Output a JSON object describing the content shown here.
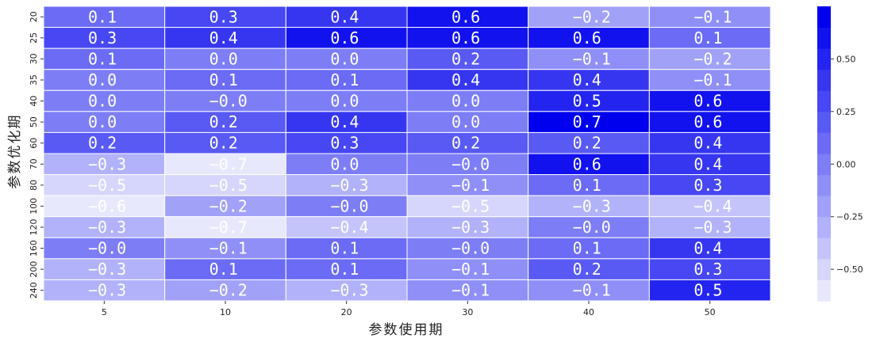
{
  "chart_data": {
    "type": "heatmap",
    "xlabel": "参数使用期",
    "ylabel": "参数优化期",
    "x_categories": [
      "5",
      "10",
      "20",
      "30",
      "40",
      "50"
    ],
    "y_categories": [
      "20",
      "25",
      "30",
      "35",
      "40",
      "50",
      "60",
      "70",
      "80",
      "100",
      "120",
      "160",
      "200",
      "240"
    ],
    "values": [
      [
        0.1,
        0.3,
        0.4,
        0.6,
        -0.2,
        -0.1
      ],
      [
        0.3,
        0.4,
        0.6,
        0.6,
        0.6,
        0.1
      ],
      [
        0.1,
        0.0,
        0.0,
        0.2,
        -0.1,
        -0.2
      ],
      [
        0.0,
        0.1,
        0.1,
        0.4,
        0.4,
        -0.1
      ],
      [
        0.0,
        -0.0,
        0.0,
        0.0,
        0.5,
        0.6
      ],
      [
        0.0,
        0.2,
        0.4,
        0.0,
        0.7,
        0.6
      ],
      [
        0.2,
        0.2,
        0.3,
        0.2,
        0.2,
        0.4
      ],
      [
        -0.3,
        -0.7,
        0.0,
        -0.0,
        0.6,
        0.4
      ],
      [
        -0.5,
        -0.5,
        -0.3,
        -0.1,
        0.1,
        0.3
      ],
      [
        -0.6,
        -0.2,
        -0.0,
        -0.5,
        -0.3,
        -0.4
      ],
      [
        -0.3,
        -0.7,
        -0.4,
        -0.3,
        -0.0,
        -0.3
      ],
      [
        -0.0,
        -0.1,
        0.1,
        -0.0,
        0.1,
        0.4
      ],
      [
        -0.3,
        0.1,
        0.1,
        -0.1,
        0.2,
        0.3
      ],
      [
        -0.3,
        -0.2,
        -0.3,
        -0.1,
        -0.1,
        0.5
      ]
    ],
    "cell_text": [
      [
        "0.1",
        "0.3",
        "0.4",
        "0.6",
        "−0.2",
        "−0.1"
      ],
      [
        "0.3",
        "0.4",
        "0.6",
        "0.6",
        "0.6",
        "0.1"
      ],
      [
        "0.1",
        "0.0",
        "0.0",
        "0.2",
        "−0.1",
        "−0.2"
      ],
      [
        "0.0",
        "0.1",
        "0.1",
        "0.4",
        "0.4",
        "−0.1"
      ],
      [
        "0.0",
        "−0.0",
        "0.0",
        "0.0",
        "0.5",
        "0.6"
      ],
      [
        "0.0",
        "0.2",
        "0.4",
        "0.0",
        "0.7",
        "0.6"
      ],
      [
        "0.2",
        "0.2",
        "0.3",
        "0.2",
        "0.2",
        "0.4"
      ],
      [
        "−0.3",
        "−0.7",
        "0.0",
        "−0.0",
        "0.6",
        "0.4"
      ],
      [
        "−0.5",
        "−0.5",
        "−0.3",
        "−0.1",
        "0.1",
        "0.3"
      ],
      [
        "−0.6",
        "−0.2",
        "−0.0",
        "−0.5",
        "−0.3",
        "−0.4"
      ],
      [
        "−0.3",
        "−0.7",
        "−0.4",
        "−0.3",
        "−0.0",
        "−0.3"
      ],
      [
        "−0.0",
        "−0.1",
        "0.1",
        "−0.0",
        "0.1",
        "0.4"
      ],
      [
        "−0.3",
        "0.1",
        "0.1",
        "−0.1",
        "0.2",
        "0.3"
      ],
      [
        "−0.3",
        "−0.2",
        "−0.3",
        "−0.1",
        "−0.1",
        "0.5"
      ]
    ],
    "colorbar": {
      "range": [
        -0.65,
        0.75
      ],
      "ticks": [
        -0.5,
        -0.25,
        0.0,
        0.25,
        0.5
      ],
      "tick_labels": [
        "−0.50",
        "−0.25",
        "0.00",
        "0.25",
        "0.50"
      ],
      "bins": 14
    },
    "colormap": {
      "low": "#e8e8fd",
      "high": "#0000ee"
    },
    "cell_border_color": "#ffffff",
    "text_color": "#ffffff"
  }
}
